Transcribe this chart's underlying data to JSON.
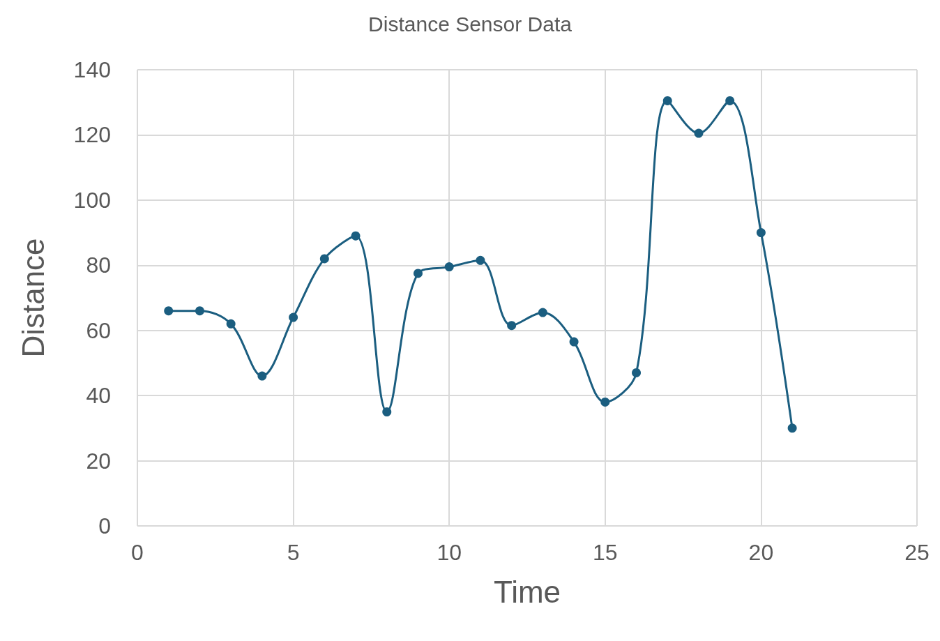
{
  "chart_data": {
    "type": "line",
    "title": "Distance Sensor Data",
    "xlabel": "Time",
    "ylabel": "Distance",
    "x": [
      1,
      2,
      3,
      4,
      5,
      6,
      7,
      8,
      9,
      10,
      11,
      12,
      13,
      14,
      15,
      16,
      17,
      18,
      19,
      20,
      21
    ],
    "series": [
      {
        "color": "#1b5e80",
        "values": [
          66,
          66,
          62,
          46,
          64,
          82,
          89,
          35,
          77.5,
          79.5,
          81.5,
          61.5,
          65.5,
          56.5,
          38,
          47,
          130.5,
          120.5,
          130.5,
          90,
          30
        ]
      }
    ],
    "xlim": [
      0,
      25
    ],
    "xticks": [
      0,
      5,
      10,
      15,
      20,
      25
    ],
    "ylim": [
      0,
      140
    ],
    "yticks": [
      0,
      20,
      40,
      60,
      80,
      100,
      120,
      140
    ],
    "grid": true,
    "marker": "circle",
    "line_style": "solid"
  }
}
